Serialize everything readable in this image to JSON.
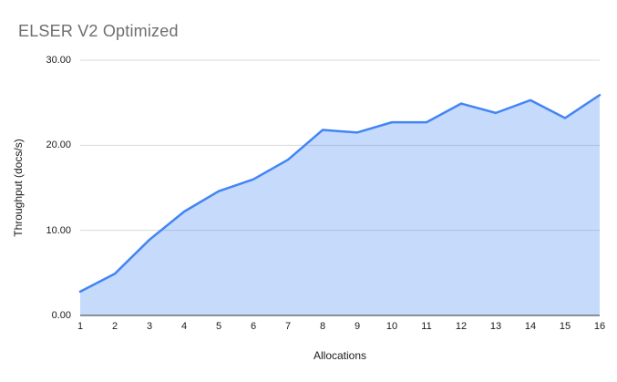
{
  "chart_data": {
    "type": "area",
    "title": "ELSER V2 Optimized",
    "xlabel": "Allocations",
    "ylabel": "Throughput (docs/s)",
    "x": [
      1,
      2,
      3,
      4,
      5,
      6,
      7,
      8,
      9,
      10,
      11,
      12,
      13,
      14,
      15,
      16
    ],
    "xtick_labels": [
      "1",
      "2",
      "3",
      "4",
      "5",
      "6",
      "7",
      "8",
      "9",
      "10",
      "11",
      "12",
      "13",
      "14",
      "15",
      "16"
    ],
    "series": [
      {
        "name": "Throughput (docs/s)",
        "values": [
          2.8,
          4.9,
          8.9,
          12.2,
          14.6,
          16.0,
          18.3,
          21.8,
          21.5,
          22.7,
          22.7,
          24.9,
          23.8,
          25.3,
          23.2,
          25.9
        ]
      }
    ],
    "ylim": [
      0,
      30
    ],
    "yticks": [
      0,
      10,
      20,
      30
    ],
    "ytick_labels": [
      "0.00",
      "10.00",
      "20.00",
      "30.00"
    ],
    "grid": true,
    "legend": "none"
  },
  "style": {
    "line_color": "#4285f4",
    "fill_color": "#4285f4",
    "fill_opacity": 0.3,
    "grid_color": "#d9d9d9",
    "axis_color": "#333333",
    "title_color": "#6e6e6e",
    "tick_color": "#1a1a1a",
    "background": "#ffffff"
  }
}
